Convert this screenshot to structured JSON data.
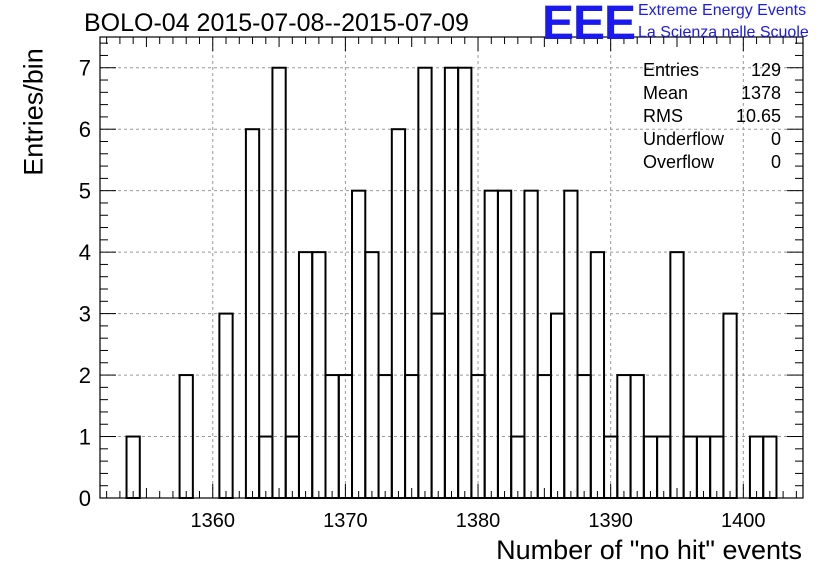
{
  "chart_data": {
    "type": "bar",
    "title": "BOLO-04 2015-07-08--2015-07-09",
    "xlabel": "Number of \"no hit\" events",
    "ylabel": "Entries/bin",
    "xlim": [
      1351.5,
      1404.5
    ],
    "ylim": [
      0,
      7.5
    ],
    "bin_width": 1,
    "x_ticks": [
      1360,
      1370,
      1380,
      1390,
      1400
    ],
    "y_ticks": [
      0,
      1,
      2,
      3,
      4,
      5,
      6,
      7
    ],
    "grid": true,
    "x": [
      1354,
      1358,
      1361,
      1363,
      1364,
      1365,
      1366,
      1367,
      1368,
      1369,
      1370,
      1371,
      1372,
      1373,
      1374,
      1375,
      1376,
      1377,
      1378,
      1379,
      1380,
      1381,
      1382,
      1383,
      1384,
      1385,
      1386,
      1387,
      1388,
      1389,
      1390,
      1391,
      1392,
      1393,
      1394,
      1395,
      1396,
      1397,
      1398,
      1399,
      1401,
      1402
    ],
    "values": [
      1,
      2,
      3,
      6,
      1,
      7,
      1,
      4,
      4,
      2,
      2,
      5,
      4,
      2,
      6,
      2,
      7,
      3,
      7,
      7,
      2,
      5,
      5,
      1,
      5,
      2,
      3,
      5,
      2,
      4,
      1,
      2,
      2,
      1,
      1,
      4,
      1,
      1,
      1,
      3,
      1,
      1
    ],
    "line_color": "#000000",
    "stats": [
      {
        "label": "Entries",
        "value": "129"
      },
      {
        "label": "Mean",
        "value": "1378"
      },
      {
        "label": "RMS",
        "value": "10.65"
      },
      {
        "label": "Underflow",
        "value": "0"
      },
      {
        "label": "Overflow",
        "value": "0"
      }
    ]
  },
  "logo": {
    "mark": "EEE",
    "line1": "Extreme Energy Events",
    "line2": "La Scienza nelle Scuole",
    "color": "#1a1aee"
  }
}
